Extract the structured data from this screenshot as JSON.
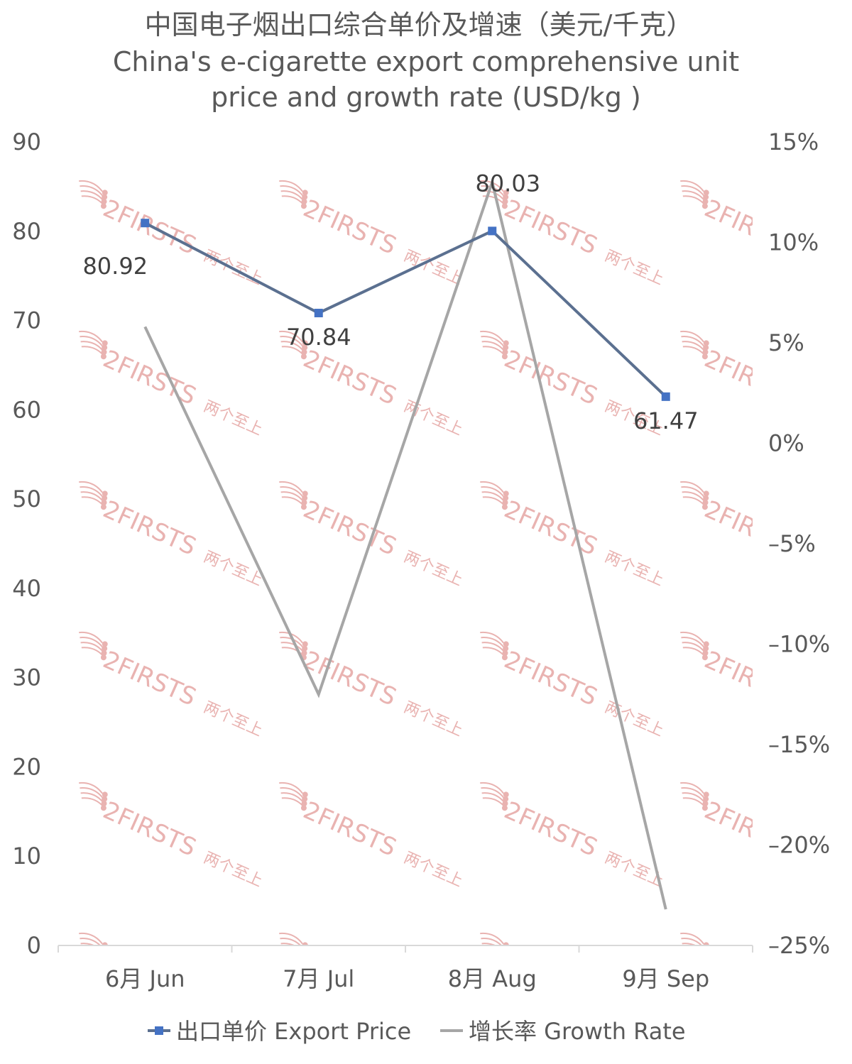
{
  "chart_data": {
    "type": "line",
    "title": "中国电子烟出口综合单价及增速（美元/千克）",
    "subtitle_lines": [
      "China's e-cigarette export comprehensive unit",
      "price and growth rate (USD/kg )"
    ],
    "categories": [
      "6月 Jun",
      "7月 Jul",
      "8月 Aug",
      "9月 Sep"
    ],
    "y_left": {
      "range": [
        0,
        90
      ],
      "ticks": [
        "0",
        "10",
        "20",
        "30",
        "40",
        "50",
        "60",
        "70",
        "80",
        "90"
      ]
    },
    "y_right": {
      "range": [
        -25,
        15
      ],
      "ticks": [
        "15%",
        "10%",
        "5%",
        "0%",
        "–5%",
        "–10%",
        "–15%",
        "–20%",
        "–25%"
      ]
    },
    "series": [
      {
        "name": "出口单价 Export Price",
        "axis": "left",
        "values": [
          80.92,
          70.84,
          80.03,
          61.47
        ],
        "data_labels": [
          "80.92",
          "70.84",
          "80.03",
          "61.47"
        ],
        "color": "#5b7090",
        "marker_color": "#4472c4"
      },
      {
        "name": "增长率 Growth Rate",
        "axis": "right",
        "values": [
          5.8,
          -12.5,
          13.0,
          -23.2
        ],
        "color": "#a6a6a6"
      }
    ],
    "legend_position": "bottom",
    "grid": false
  },
  "watermark": {
    "brand": "2FIRSTS",
    "cn": "两个至上",
    "color": "#e9b3b1"
  }
}
